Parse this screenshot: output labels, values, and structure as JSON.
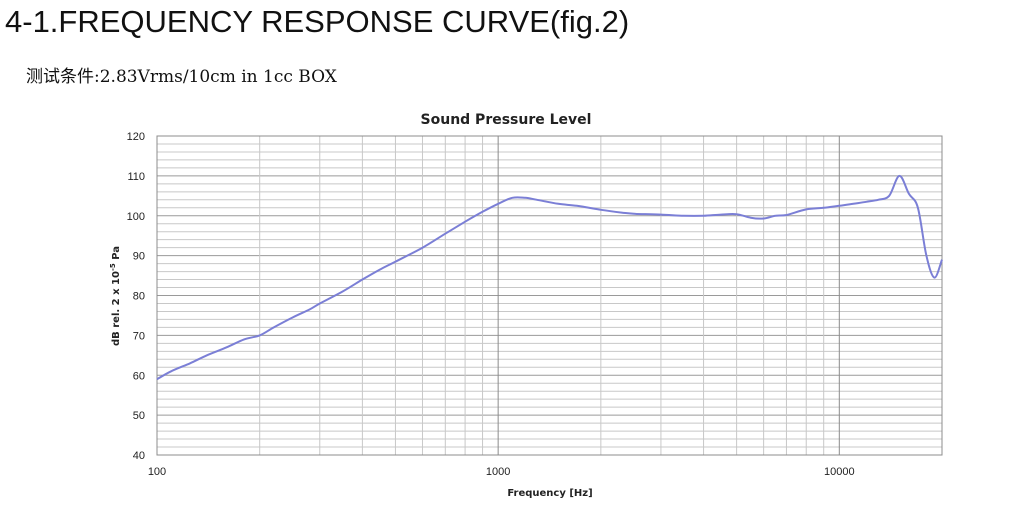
{
  "header": {
    "title": "4-1.FREQUENCY RESPONSE CURVE(fig.2)",
    "subtitle": "测试条件:2.83Vrms/10cm in 1cc BOX"
  },
  "colors": {
    "series": "#7b7fd6",
    "grid_major": "#9a9a9a",
    "grid_minor": "#c8c8c8"
  },
  "chart_data": {
    "type": "line",
    "title": "Sound Pressure Level",
    "xlabel": "Frequency [Hz]",
    "ylabel_main": "dB rel. 2 x 10",
    "ylabel_exp": "-5",
    "ylabel_unit": " Pa",
    "xscale": "log",
    "xlim": [
      100,
      20000
    ],
    "ylim": [
      40,
      120
    ],
    "xticks": [
      100,
      1000,
      10000
    ],
    "xtick_labels": [
      "100",
      "1000",
      "10000"
    ],
    "yticks": [
      40,
      50,
      60,
      70,
      80,
      90,
      100,
      110,
      120
    ],
    "grid": true,
    "series": [
      {
        "x": [
          100,
          110,
          125,
          140,
          160,
          180,
          200,
          220,
          250,
          280,
          300,
          350,
          400,
          450,
          500,
          600,
          700,
          800,
          900,
          1000,
          1100,
          1200,
          1300,
          1500,
          1700,
          2000,
          2300,
          2500,
          3000,
          3500,
          4000,
          4500,
          5000,
          5500,
          6000,
          6500,
          7000,
          8000,
          9000,
          10000,
          11000,
          12000,
          13000,
          14000,
          15000,
          16000,
          17000,
          18000,
          19000,
          20000
        ],
        "y": [
          59,
          61,
          63,
          65,
          67,
          69,
          70,
          72,
          74.5,
          76.5,
          78,
          81,
          84,
          86.5,
          88.5,
          92,
          95.5,
          98.5,
          101,
          103,
          104.5,
          104.5,
          104,
          103,
          102.5,
          101.5,
          100.8,
          100.5,
          100.3,
          100,
          100,
          100.3,
          100.4,
          99.5,
          99.3,
          100,
          100.2,
          101.6,
          102,
          102.5,
          103,
          103.5,
          104,
          105,
          110,
          105.5,
          102,
          90,
          84.5,
          89
        ]
      }
    ]
  }
}
